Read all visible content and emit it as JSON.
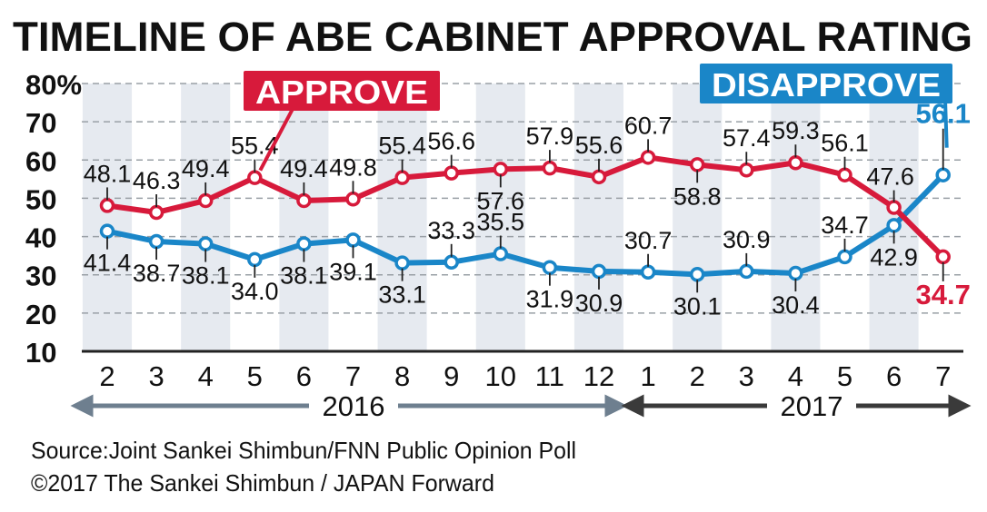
{
  "chart_data": {
    "type": "line",
    "title": "TIMELINE OF ABE CABINET APPROVAL RATING",
    "ytick_labels": [
      "80%",
      "70",
      "60",
      "50",
      "40",
      "30",
      "20",
      "10"
    ],
    "ylim": [
      10,
      80
    ],
    "categories": [
      "2",
      "3",
      "4",
      "5",
      "6",
      "7",
      "8",
      "9",
      "10",
      "11",
      "12",
      "1",
      "2",
      "3",
      "4",
      "5",
      "6",
      "7"
    ],
    "year_labels": [
      "2016",
      "2017"
    ],
    "series": [
      {
        "name": "APPROVE",
        "color": "#d71a3b",
        "values": [
          48.1,
          46.3,
          49.4,
          55.4,
          49.4,
          49.8,
          55.4,
          56.6,
          57.6,
          57.9,
          55.6,
          60.7,
          58.8,
          57.4,
          59.3,
          56.1,
          47.6,
          34.7
        ],
        "labels": [
          "48.1",
          "46.3",
          "49.4",
          "55.4",
          "49.4",
          "49.8",
          "55.4",
          "56.6",
          "57.6",
          "57.9",
          "55.6",
          "60.7",
          "58.8",
          "57.4",
          "59.3",
          "56.1",
          "47.6",
          "34.7"
        ]
      },
      {
        "name": "DISAPPROVE",
        "color": "#1a86c8",
        "values": [
          41.4,
          38.7,
          38.1,
          34.0,
          38.1,
          39.1,
          33.1,
          33.3,
          35.5,
          31.9,
          30.9,
          30.7,
          30.1,
          30.9,
          30.4,
          34.7,
          42.9,
          56.1
        ],
        "labels": [
          "41.4",
          "38.7",
          "38.1",
          "34.0",
          "38.1",
          "39.1",
          "33.1",
          "33.3",
          "35.5",
          "31.9",
          "30.9",
          "30.7",
          "30.1",
          "30.9",
          "30.4",
          "34.7",
          "42.9",
          "56.1"
        ]
      }
    ],
    "grid": true,
    "alternate_column_shading": true
  },
  "source_text": "Source:Joint Sankei Shimbun/FNN Public Opinion Poll",
  "copyright_text": "©2017 The Sankei Shimbun / JAPAN Forward"
}
